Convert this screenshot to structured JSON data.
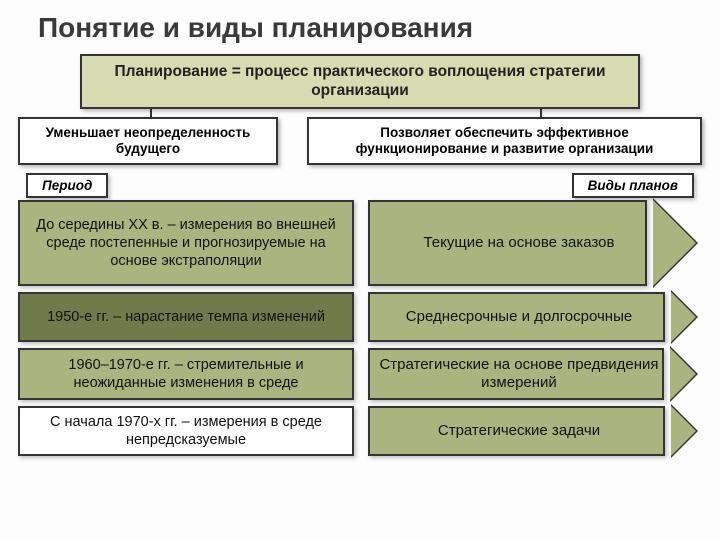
{
  "title": "Понятие и виды планирования",
  "definition": "Планирование = процесс практического воплощения стратегии организации",
  "sub_left": "Уменьшает неопределенность будущего",
  "sub_right": "Позволяет обеспечить эффективное функционирование и развитие организации",
  "header_left": "Период",
  "header_right": "Виды планов",
  "colors": {
    "def_bg": "#d6dbb1",
    "period_bg_dark": "#6f7b4a",
    "period_bg_light": "#aab47f",
    "arrow_bg": "#aab47f",
    "border": "#343434",
    "page_bg": "#fdfdfd"
  },
  "rows": [
    {
      "period": "До середины ХХ в. – измерения во внешней среде постепенные и прогнозируемые на основе экстраполяции",
      "plan": "Текущие на основе заказов",
      "period_bg": "#aab47f",
      "height": 86
    },
    {
      "period": "1950-е гг. – нарастание темпа изменений",
      "plan": "Среднесрочные и долгосрочные",
      "period_bg": "#6f7b4a",
      "height": 50
    },
    {
      "period": "1960–1970-е гг. – стремительные и неожиданные изменения в среде",
      "plan": "Стратегические на основе предвидения измерений",
      "period_bg": "#aab47f",
      "height": 52
    },
    {
      "period": "С начала 1970-х гг. – измерения в среде непредсказуемые",
      "plan": "Стратегические задачи",
      "period_bg": "#ffffff",
      "height": 50
    }
  ]
}
